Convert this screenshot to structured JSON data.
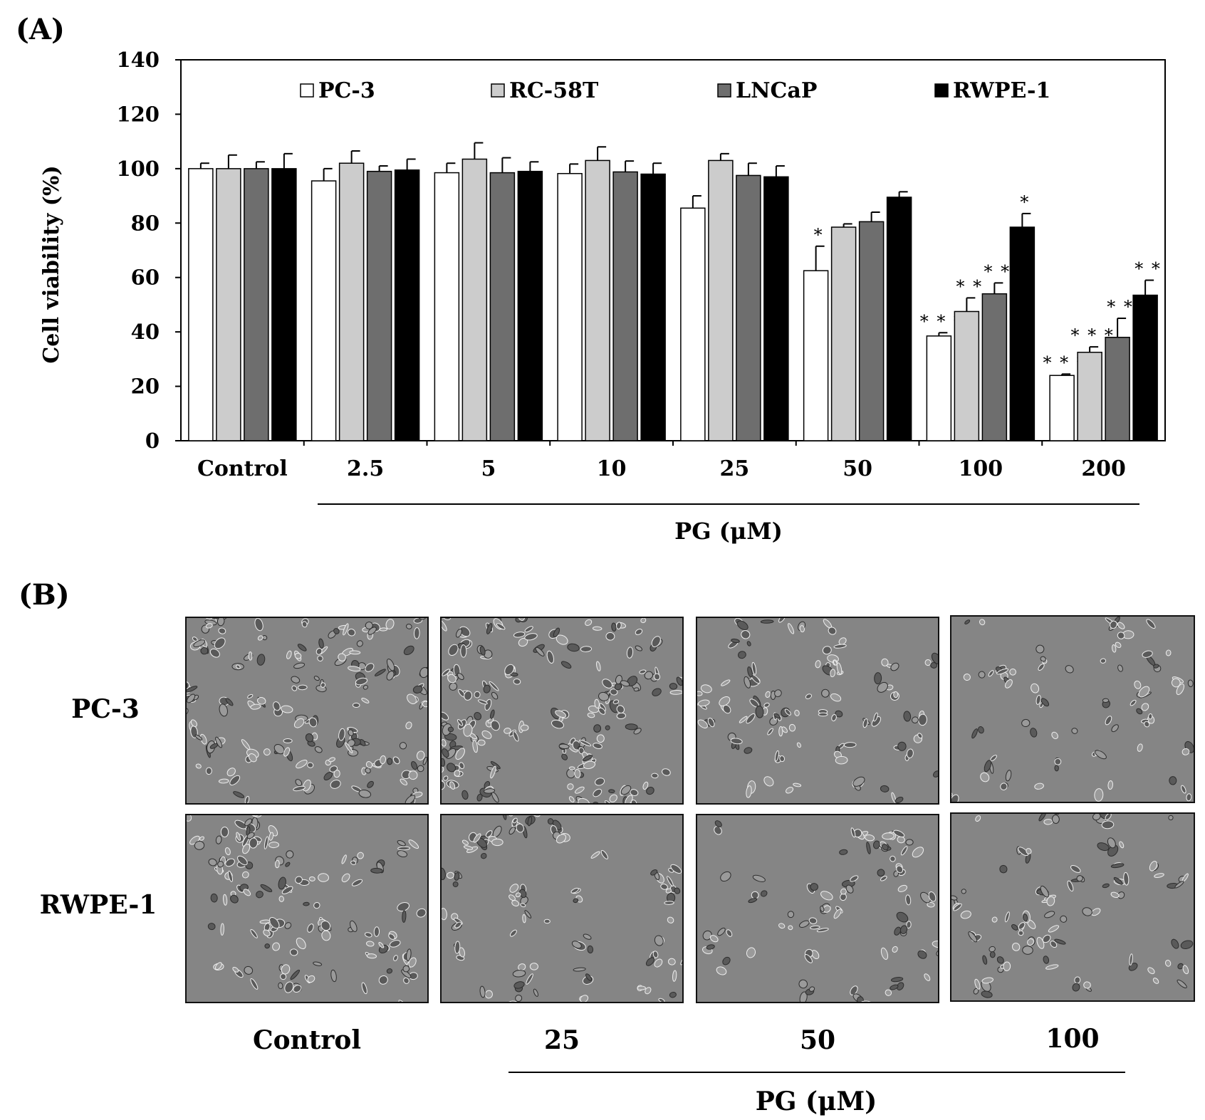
{
  "panel_a_label": "(A)",
  "panel_b_label": "(B)",
  "chart_data": {
    "type": "bar",
    "ylabel": "Cell viability (%)",
    "xlabel": "PG (μM)",
    "ylim": [
      0,
      140
    ],
    "yticks": [
      0,
      20,
      40,
      60,
      80,
      100,
      120,
      140
    ],
    "categories": [
      "Control",
      "2.5",
      "5",
      "10",
      "25",
      "50",
      "100",
      "200"
    ],
    "legend_position": "top",
    "series": [
      {
        "name": "PC-3",
        "color": "#ffffff",
        "values": [
          100,
          95.5,
          98.5,
          98.2,
          85.5,
          62.5,
          38.5,
          24
        ],
        "errors": [
          2,
          4.5,
          3.5,
          3.5,
          4.5,
          9,
          1.2,
          0.5
        ],
        "sig": [
          "",
          "",
          "",
          "",
          "",
          "*",
          "***",
          "***"
        ]
      },
      {
        "name": "RC-58T",
        "color": "#cccccc",
        "values": [
          100,
          102,
          103.5,
          103,
          103,
          78.5,
          47.5,
          32.5
        ],
        "errors": [
          5,
          4.5,
          6,
          5,
          2.5,
          1.2,
          5,
          2
        ],
        "sig": [
          "",
          "",
          "",
          "",
          "",
          "",
          "**",
          "***"
        ]
      },
      {
        "name": "LNCaP",
        "color": "#6e6e6e",
        "values": [
          100,
          99,
          98.5,
          98.8,
          97.5,
          80.5,
          54,
          38
        ],
        "errors": [
          2.5,
          2,
          5.5,
          4,
          4.5,
          3.5,
          4,
          7
        ],
        "sig": [
          "",
          "",
          "",
          "",
          "",
          "",
          "**",
          "**"
        ]
      },
      {
        "name": "RWPE-1",
        "color": "#000000",
        "values": [
          100,
          99.5,
          99,
          98,
          97,
          89.5,
          78.5,
          53.5
        ],
        "errors": [
          5.5,
          4,
          3.5,
          4,
          4,
          2,
          5,
          5.5
        ],
        "sig": [
          "",
          "",
          "",
          "",
          "",
          "",
          "*",
          "**"
        ]
      }
    ]
  },
  "panel_b": {
    "rows": [
      "PC-3",
      "RWPE-1"
    ],
    "columns": [
      "Control",
      "25",
      "50",
      "100"
    ],
    "axis_title": "PG (μM)"
  }
}
